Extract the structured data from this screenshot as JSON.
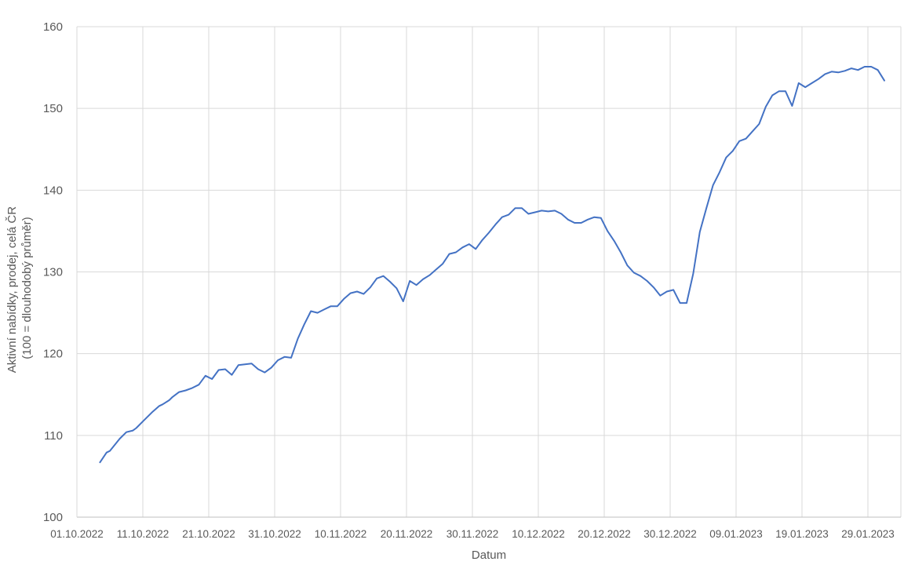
{
  "chart_data": {
    "type": "line",
    "title": "",
    "xlabel": "Datum",
    "ylabel_lines": [
      "Aktivní nabídky, prodej, celá ČR",
      "(100 = dlouhodobý průměr)"
    ],
    "ylim": [
      100,
      160
    ],
    "yticks": [
      100,
      110,
      120,
      130,
      140,
      150,
      160
    ],
    "x_range_days": [
      0,
      124
    ],
    "xticks": [
      {
        "day": 0,
        "label": "01.10.2022"
      },
      {
        "day": 10,
        "label": "11.10.2022"
      },
      {
        "day": 20,
        "label": "21.10.2022"
      },
      {
        "day": 30,
        "label": "31.10.2022"
      },
      {
        "day": 40,
        "label": "10.11.2022"
      },
      {
        "day": 50,
        "label": "20.11.2022"
      },
      {
        "day": 60,
        "label": "30.11.2022"
      },
      {
        "day": 70,
        "label": "10.12.2022"
      },
      {
        "day": 80,
        "label": "20.12.2022"
      },
      {
        "day": 90,
        "label": "30.12.2022"
      },
      {
        "day": 100,
        "label": "09.01.2023"
      },
      {
        "day": 110,
        "label": "19.01.2023"
      },
      {
        "day": 120,
        "label": "29.01.2023"
      }
    ],
    "grid": true,
    "line_color": "#4472c4",
    "series": [
      {
        "x": [
          3.5,
          4.5,
          5.0,
          6.5,
          7.5,
          8.5,
          9.0,
          10.0,
          11.5,
          12.5,
          13.0,
          14.0,
          14.5,
          15.5,
          16.5,
          17.5,
          18.5,
          19.5,
          20.5,
          21.5,
          22.5,
          23.5,
          24.5,
          25.5,
          26.5,
          27.5,
          28.5,
          29.5,
          30.5,
          31.5,
          32.5,
          33.5,
          34.5,
          35.5,
          36.5,
          37.5,
          38.5,
          39.5,
          40.5,
          41.5,
          42.5,
          43.5,
          44.5,
          45.5,
          46.5,
          47.5,
          48.5,
          49.5,
          50.5,
          51.5,
          52.5,
          53.5,
          54.5,
          55.5,
          56.5,
          57.5,
          58.5,
          59.5,
          60.5,
          61.5,
          62.5,
          63.5,
          64.5,
          65.5,
          66.5,
          67.5,
          68.5,
          69.5,
          70.5,
          71.5,
          72.5,
          73.5,
          74.5,
          75.5,
          76.5,
          77.5,
          78.5,
          79.5,
          80.5,
          81.5,
          82.5,
          83.5,
          84.5,
          85.5,
          86.5,
          87.5,
          88.5,
          89.5,
          90.5,
          91.5,
          92.5,
          93.5,
          94.5,
          95.5,
          96.5,
          97.5,
          98.5,
          99.5,
          100.5,
          101.5,
          102.5,
          103.5,
          104.5,
          105.5,
          106.5,
          107.5,
          108.5,
          109.5,
          110.5,
          111.5,
          112.5,
          113.5,
          114.5,
          115.5,
          116.5,
          117.5,
          118.5,
          119.5,
          120.5,
          121.5,
          122.5
        ],
        "values": [
          106.7,
          107.9,
          108.1,
          109.6,
          110.4,
          110.6,
          110.9,
          111.7,
          112.9,
          113.6,
          113.8,
          114.3,
          114.7,
          115.3,
          115.5,
          115.8,
          116.2,
          117.3,
          116.9,
          118.0,
          118.1,
          117.4,
          118.6,
          118.7,
          118.8,
          118.1,
          117.7,
          118.3,
          119.2,
          119.6,
          119.5,
          121.8,
          123.6,
          125.2,
          125.0,
          125.4,
          125.8,
          125.8,
          126.7,
          127.4,
          127.6,
          127.3,
          128.1,
          129.2,
          129.5,
          128.8,
          128.0,
          126.4,
          128.9,
          128.4,
          129.1,
          129.6,
          130.3,
          131.0,
          132.2,
          132.4,
          133.0,
          133.4,
          132.8,
          133.9,
          134.8,
          135.8,
          136.7,
          137.0,
          137.8,
          137.8,
          137.1,
          137.3,
          137.5,
          137.4,
          137.5,
          137.1,
          136.4,
          136.0,
          136.0,
          136.4,
          136.7,
          136.6,
          135.0,
          133.8,
          132.4,
          130.8,
          129.9,
          129.5,
          128.9,
          128.1,
          127.1,
          127.6,
          127.8,
          126.2,
          126.2,
          129.8,
          134.9,
          137.8,
          140.6,
          142.2,
          144.0,
          144.8,
          146.0,
          146.3,
          147.2,
          148.1,
          150.2,
          151.6,
          152.1,
          152.1,
          150.3,
          153.1,
          152.6,
          153.1,
          153.6,
          154.2,
          154.5,
          154.4,
          154.6,
          154.9,
          154.7,
          155.1,
          155.1,
          154.7,
          153.4
        ]
      }
    ]
  }
}
